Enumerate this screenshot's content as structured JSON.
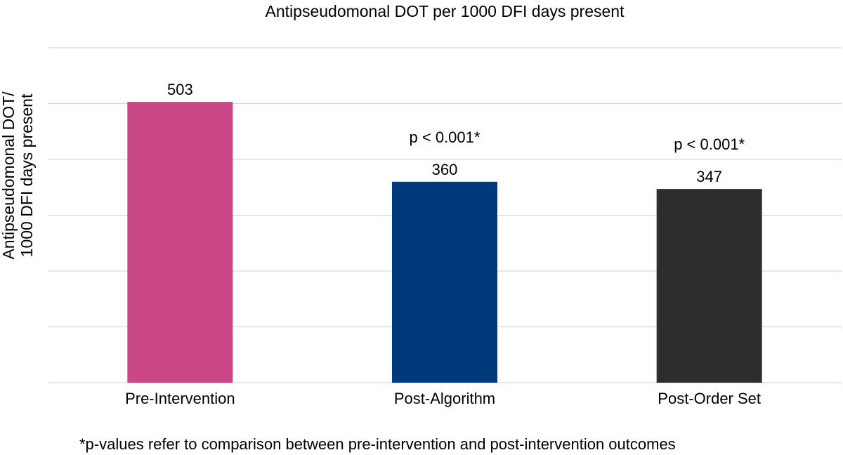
{
  "chart_data": {
    "type": "bar",
    "title": "Antipseudomonal DOT per 1000 DFI days present",
    "ylabel_lines": [
      "Antipseudomonal DOT/",
      "1000 DFI days present"
    ],
    "xlabel": "",
    "categories": [
      "Pre-Intervention",
      "Post-Algorithm",
      "Post-Order Set"
    ],
    "values": [
      503,
      360,
      347
    ],
    "value_labels": [
      "503",
      "360",
      "347"
    ],
    "annotations": [
      "",
      "p < 0.001*",
      "p < 0.001*"
    ],
    "colors": [
      "#c94784",
      "#003a7b",
      "#2d2d2d"
    ],
    "ylim": [
      0,
      600
    ],
    "gridlines": [
      0,
      100,
      200,
      300,
      400,
      500,
      600
    ],
    "grid": true,
    "footnote": "*p-values refer to comparison between pre-intervention and post-intervention outcomes"
  }
}
